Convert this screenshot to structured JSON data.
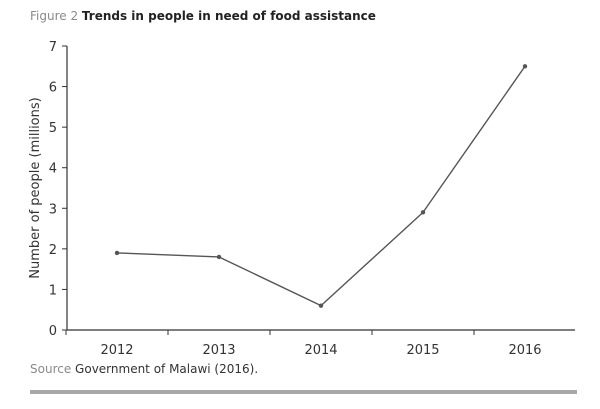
{
  "figure": {
    "number": "Figure 2",
    "title": "Trends in people in need of food assistance"
  },
  "source": {
    "label": "Source",
    "text": "Government of Malawi (2016)."
  },
  "chart_data": {
    "type": "line",
    "categories": [
      "2012",
      "2013",
      "2014",
      "2015",
      "2016"
    ],
    "series": [
      {
        "values": [
          1.9,
          1.8,
          0.6,
          2.9,
          6.5
        ]
      }
    ],
    "ylabel": "Number of people (millions)",
    "xlabel": "",
    "ylim": [
      0,
      7
    ],
    "yticks": [
      0,
      1,
      2,
      3,
      4,
      5,
      6,
      7
    ],
    "grid": false,
    "colors": {
      "line": "#555555",
      "axis": "#333333",
      "text": "#333333"
    }
  }
}
